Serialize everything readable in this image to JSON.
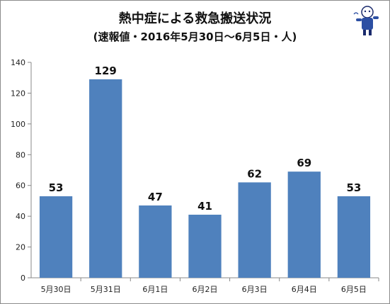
{
  "title": "熱中症による救急搬送状況",
  "subtitle": "(速報値・2016年5月30日〜6月5日・人)",
  "chart_data": {
    "type": "bar",
    "categories": [
      "5月30日",
      "5月31日",
      "6月1日",
      "6月2日",
      "6月3日",
      "6月4日",
      "6月5日"
    ],
    "values": [
      53,
      129,
      47,
      41,
      62,
      69,
      53
    ],
    "ylim": [
      0,
      140
    ],
    "yticks": [
      0,
      20,
      40,
      60,
      80,
      100,
      120,
      140
    ],
    "grid": false,
    "legend": "none",
    "bar_color": "#4f81bd"
  }
}
